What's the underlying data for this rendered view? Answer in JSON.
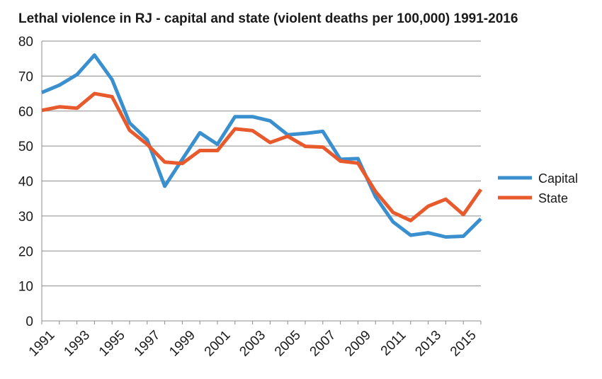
{
  "chart_data": {
    "type": "line",
    "title": "Lethal violence in RJ - capital and state (violent deaths per 100,000) 1991-2016",
    "xlabel": "",
    "ylabel": "",
    "ylim": [
      0,
      80
    ],
    "yticks": [
      0,
      10,
      20,
      30,
      40,
      50,
      60,
      70,
      80
    ],
    "x": [
      1991,
      1992,
      1993,
      1994,
      1995,
      1996,
      1997,
      1998,
      1999,
      2000,
      2001,
      2002,
      2003,
      2004,
      2005,
      2006,
      2007,
      2008,
      2009,
      2010,
      2011,
      2012,
      2013,
      2014,
      2015,
      2016
    ],
    "x_tick_labels": [
      "1991",
      "1993",
      "1995",
      "1997",
      "1999",
      "2001",
      "2003",
      "2005",
      "2007",
      "2009",
      "2011",
      "2013",
      "2015"
    ],
    "grid": "horizontal",
    "legend_position": "right",
    "series": [
      {
        "name": "Capital",
        "color": "#3a8fcf",
        "values": [
          65.3,
          67.4,
          70.4,
          76.0,
          69.0,
          56.6,
          51.8,
          38.5,
          46.2,
          53.8,
          50.5,
          58.4,
          58.4,
          57.2,
          53.2,
          53.6,
          54.2,
          46.2,
          46.4,
          35.5,
          28.3,
          24.5,
          25.2,
          24.0,
          24.2,
          29.2
        ]
      },
      {
        "name": "State",
        "color": "#e8592b",
        "values": [
          60.2,
          61.2,
          60.8,
          65.0,
          64.1,
          54.5,
          50.5,
          45.4,
          45.0,
          48.7,
          48.7,
          54.9,
          54.4,
          51.0,
          52.8,
          49.9,
          49.7,
          45.7,
          45.1,
          37.0,
          31.0,
          28.7,
          32.8,
          34.8,
          30.4,
          37.6
        ]
      }
    ]
  }
}
